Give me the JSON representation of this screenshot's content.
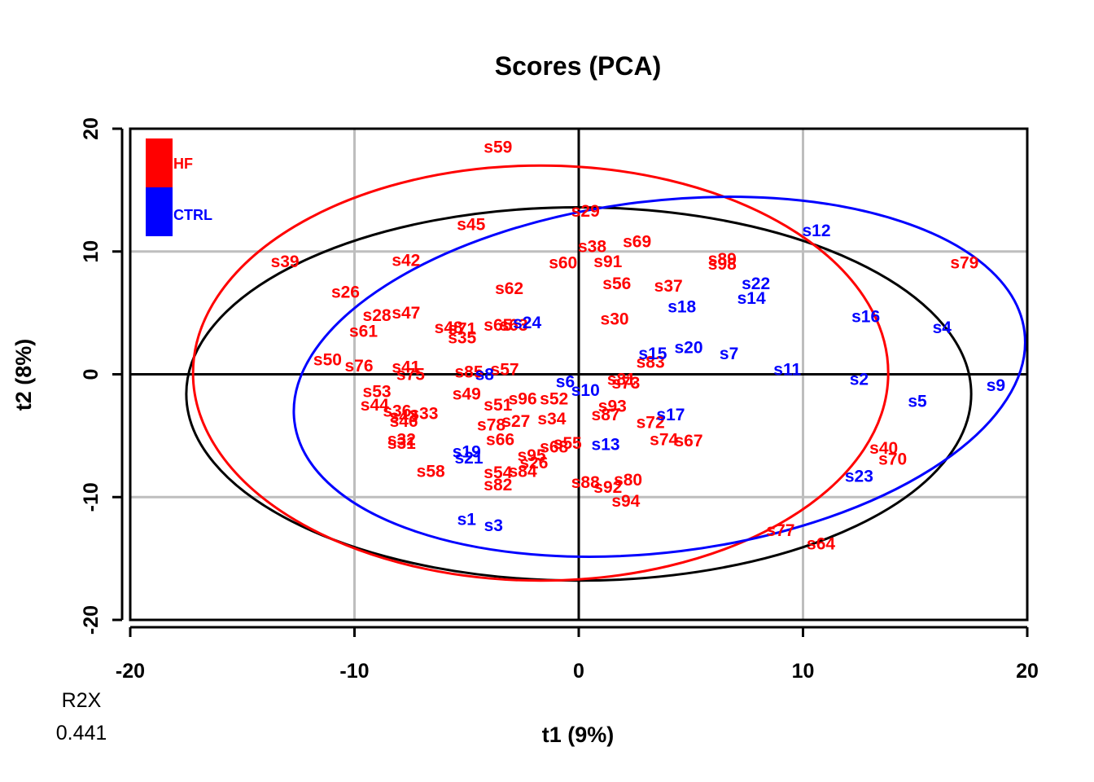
{
  "chart_data": {
    "type": "scatter",
    "title": "Scores (PCA)",
    "xlabel": "t1 (9%)",
    "ylabel": "t2 (8%)",
    "xlim": [
      -20,
      20
    ],
    "ylim": [
      -20,
      20
    ],
    "xticks": [
      -20,
      -10,
      0,
      10,
      20
    ],
    "yticks": [
      -20,
      -10,
      0,
      10,
      20
    ],
    "xtick_labels": [
      "-20",
      "-10",
      "0",
      "10",
      "20"
    ],
    "ytick_labels": [
      "-20",
      "-10",
      "0",
      "10",
      "20"
    ],
    "grid": true,
    "legend_position": "top-left",
    "r2x_label": "R2X",
    "r2x_value": "0.441",
    "colors": {
      "HF": "#ff0000",
      "CTRL": "#0000ff",
      "overall": "#000000"
    },
    "series": [
      {
        "name": "HF",
        "points": [
          {
            "label": "s59",
            "x": -3.6,
            "y": 18.5
          },
          {
            "label": "s29",
            "x": 0.3,
            "y": 13.3
          },
          {
            "label": "s45",
            "x": -4.8,
            "y": 12.2
          },
          {
            "label": "s69",
            "x": 2.6,
            "y": 10.8
          },
          {
            "label": "s38",
            "x": 0.6,
            "y": 10.4
          },
          {
            "label": "s39",
            "x": -13.1,
            "y": 9.2
          },
          {
            "label": "s42",
            "x": -7.7,
            "y": 9.3
          },
          {
            "label": "s60",
            "x": -0.7,
            "y": 9.1
          },
          {
            "label": "s91",
            "x": 1.3,
            "y": 9.2
          },
          {
            "label": "s89",
            "x": 6.4,
            "y": 9.4
          },
          {
            "label": "s98",
            "x": 6.4,
            "y": 9.0
          },
          {
            "label": "s79",
            "x": 17.2,
            "y": 9.1
          },
          {
            "label": "s56",
            "x": 1.7,
            "y": 7.4
          },
          {
            "label": "s37",
            "x": 4.0,
            "y": 7.2
          },
          {
            "label": "s26",
            "x": -10.4,
            "y": 6.7
          },
          {
            "label": "s62",
            "x": -3.1,
            "y": 7.0
          },
          {
            "label": "s28",
            "x": -9.0,
            "y": 4.8
          },
          {
            "label": "s47",
            "x": -7.7,
            "y": 5.0
          },
          {
            "label": "s30",
            "x": 1.6,
            "y": 4.5
          },
          {
            "label": "s61",
            "x": -9.6,
            "y": 3.5
          },
          {
            "label": "s48",
            "x": -5.8,
            "y": 3.8
          },
          {
            "label": "s71",
            "x": -5.2,
            "y": 3.7
          },
          {
            "label": "s35",
            "x": -5.2,
            "y": 3.0
          },
          {
            "label": "s65",
            "x": -3.6,
            "y": 4.0
          },
          {
            "label": "s63",
            "x": -2.9,
            "y": 4.0
          },
          {
            "label": "s83",
            "x": 3.2,
            "y": 1.0
          },
          {
            "label": "s50",
            "x": -11.2,
            "y": 1.2
          },
          {
            "label": "s76",
            "x": -9.8,
            "y": 0.7
          },
          {
            "label": "s41",
            "x": -7.7,
            "y": 0.6
          },
          {
            "label": "s75",
            "x": -7.5,
            "y": 0.0
          },
          {
            "label": "s85",
            "x": -4.9,
            "y": 0.2
          },
          {
            "label": "s57",
            "x": -3.3,
            "y": 0.4
          },
          {
            "label": "s81",
            "x": 1.9,
            "y": -0.4
          },
          {
            "label": "s73",
            "x": 2.1,
            "y": -0.7
          },
          {
            "label": "s53",
            "x": -9.0,
            "y": -1.4
          },
          {
            "label": "s49",
            "x": -5.0,
            "y": -1.6
          },
          {
            "label": "s96",
            "x": -2.5,
            "y": -2.0
          },
          {
            "label": "s52",
            "x": -1.1,
            "y": -2.0
          },
          {
            "label": "s51",
            "x": -3.6,
            "y": -2.5
          },
          {
            "label": "s44",
            "x": -9.1,
            "y": -2.5
          },
          {
            "label": "s93",
            "x": 1.5,
            "y": -2.6
          },
          {
            "label": "s36",
            "x": -8.1,
            "y": -3.0
          },
          {
            "label": "s33",
            "x": -6.9,
            "y": -3.2
          },
          {
            "label": "s43",
            "x": -7.8,
            "y": -3.4
          },
          {
            "label": "s46",
            "x": -7.8,
            "y": -3.8
          },
          {
            "label": "s87",
            "x": 1.2,
            "y": -3.3
          },
          {
            "label": "s34",
            "x": -1.2,
            "y": -3.6
          },
          {
            "label": "s72",
            "x": 3.2,
            "y": -3.9
          },
          {
            "label": "s27",
            "x": -2.8,
            "y": -3.8
          },
          {
            "label": "s78",
            "x": -3.9,
            "y": -4.1
          },
          {
            "label": "s66",
            "x": -3.5,
            "y": -5.3
          },
          {
            "label": "s32",
            "x": -7.9,
            "y": -5.3
          },
          {
            "label": "s31",
            "x": -7.9,
            "y": -5.6
          },
          {
            "label": "s74",
            "x": 3.8,
            "y": -5.3
          },
          {
            "label": "s67",
            "x": 4.9,
            "y": -5.4
          },
          {
            "label": "s55",
            "x": -0.5,
            "y": -5.6
          },
          {
            "label": "s68",
            "x": -1.1,
            "y": -5.9
          },
          {
            "label": "s95",
            "x": -2.1,
            "y": -6.6
          },
          {
            "label": "s26b",
            "x": -2.0,
            "y": -7.2,
            "text": "s26"
          },
          {
            "label": "s40",
            "x": 13.6,
            "y": -6.0
          },
          {
            "label": "s70",
            "x": 14.0,
            "y": -6.9
          },
          {
            "label": "s58",
            "x": -6.6,
            "y": -7.9
          },
          {
            "label": "s54",
            "x": -3.6,
            "y": -8.0
          },
          {
            "label": "s84",
            "x": -2.5,
            "y": -7.9
          },
          {
            "label": "s80",
            "x": 2.2,
            "y": -8.6
          },
          {
            "label": "s88",
            "x": 0.3,
            "y": -8.8
          },
          {
            "label": "s82",
            "x": -3.6,
            "y": -9.0
          },
          {
            "label": "s92",
            "x": 1.3,
            "y": -9.2
          },
          {
            "label": "s94",
            "x": 2.1,
            "y": -10.3
          },
          {
            "label": "s77",
            "x": 9.0,
            "y": -12.7
          },
          {
            "label": "s64",
            "x": 10.8,
            "y": -13.8
          }
        ],
        "ellipse": {
          "cx": -1.7,
          "cy": 0.1,
          "rx": 15.5,
          "ry": 16.9
        }
      },
      {
        "name": "CTRL",
        "points": [
          {
            "label": "s12",
            "x": 10.6,
            "y": 11.7
          },
          {
            "label": "s22",
            "x": 7.9,
            "y": 7.4
          },
          {
            "label": "s14",
            "x": 7.7,
            "y": 6.2
          },
          {
            "label": "s18",
            "x": 4.6,
            "y": 5.5
          },
          {
            "label": "s16",
            "x": 12.8,
            "y": 4.7
          },
          {
            "label": "s4",
            "x": 16.2,
            "y": 3.8
          },
          {
            "label": "s24",
            "x": -2.3,
            "y": 4.2
          },
          {
            "label": "s15",
            "x": 3.3,
            "y": 1.7
          },
          {
            "label": "s20",
            "x": 4.9,
            "y": 2.2
          },
          {
            "label": "s7",
            "x": 6.7,
            "y": 1.7
          },
          {
            "label": "s11",
            "x": 9.3,
            "y": 0.4
          },
          {
            "label": "s8",
            "x": -4.2,
            "y": 0.0
          },
          {
            "label": "s6",
            "x": -0.6,
            "y": -0.6
          },
          {
            "label": "s10",
            "x": 0.3,
            "y": -1.3
          },
          {
            "label": "s2",
            "x": 12.5,
            "y": -0.4
          },
          {
            "label": "s9",
            "x": 18.6,
            "y": -0.9
          },
          {
            "label": "s5",
            "x": 15.1,
            "y": -2.2
          },
          {
            "label": "s17",
            "x": 4.1,
            "y": -3.3
          },
          {
            "label": "s13",
            "x": 1.2,
            "y": -5.7
          },
          {
            "label": "s19",
            "x": -5.0,
            "y": -6.3
          },
          {
            "label": "s21",
            "x": -4.9,
            "y": -6.8
          },
          {
            "label": "s23",
            "x": 12.5,
            "y": -8.3
          },
          {
            "label": "s1",
            "x": -5.0,
            "y": -11.8
          },
          {
            "label": "s3",
            "x": -3.8,
            "y": -12.3
          }
        ],
        "ellipse": {
          "cx": 3.6,
          "cy": -0.2,
          "rx": 16.4,
          "ry": 14.3,
          "angle_deg": 7
        }
      }
    ],
    "overall_ellipse": {
      "cx": 0.0,
      "cy": -1.6,
      "rx": 17.5,
      "ry": 15.2
    }
  }
}
